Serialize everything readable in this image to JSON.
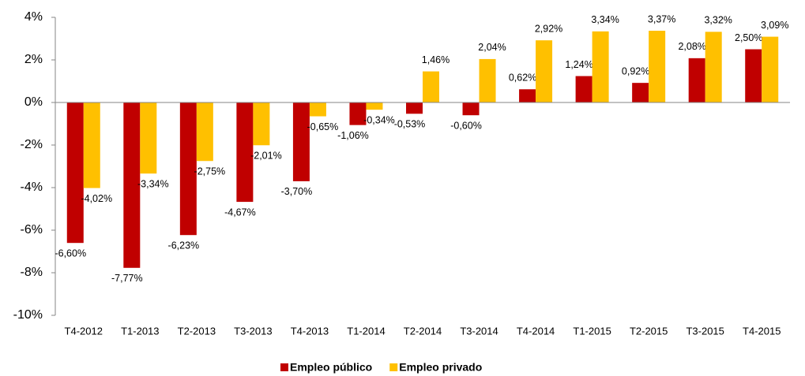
{
  "chart_data": {
    "type": "bar",
    "categories": [
      "T4-2012",
      "T1-2013",
      "T2-2013",
      "T3-2013",
      "T4-2013",
      "T1-2014",
      "T2-2014",
      "T3-2014",
      "T4-2014",
      "T1-2015",
      "T2-2015",
      "T3-2015",
      "T4-2015"
    ],
    "series": [
      {
        "name": "Empleo público",
        "color": "#c00000",
        "values": [
          -6.6,
          -7.77,
          -6.23,
          -4.67,
          -3.7,
          -1.06,
          -0.53,
          -0.6,
          0.62,
          1.24,
          0.92,
          2.08,
          2.5
        ],
        "value_labels": [
          "-6,60%",
          "-7,77%",
          "-6,23%",
          "-4,67%",
          "-3,70%",
          "-1,06%",
          "-0,53%",
          "-0,60%",
          "0,62%",
          "1,24%",
          "0,92%",
          "2,08%",
          "2,50%"
        ]
      },
      {
        "name": "Empleo privado",
        "color": "#ffc000",
        "values": [
          -4.02,
          -3.34,
          -2.75,
          -2.01,
          -0.65,
          -0.34,
          1.46,
          2.04,
          2.92,
          3.34,
          3.37,
          3.32,
          3.09
        ],
        "value_labels": [
          "-4,02%",
          "-3,34%",
          "-2,75%",
          "-2,01%",
          "-0,65%",
          "-0,34%",
          "1,46%",
          "2,04%",
          "2,92%",
          "3,34%",
          "3,37%",
          "3,32%",
          "3,09%"
        ]
      }
    ],
    "ylim": [
      -10,
      4
    ],
    "yticks": [
      {
        "value": -10,
        "label": "-10%"
      },
      {
        "value": -8,
        "label": "-8%"
      },
      {
        "value": -6,
        "label": "-6%"
      },
      {
        "value": -4,
        "label": "-4%"
      },
      {
        "value": -2,
        "label": "-2%"
      },
      {
        "value": 0,
        "label": "0%"
      },
      {
        "value": 2,
        "label": "2%"
      },
      {
        "value": 4,
        "label": "4%"
      }
    ],
    "legend": "bottom"
  }
}
